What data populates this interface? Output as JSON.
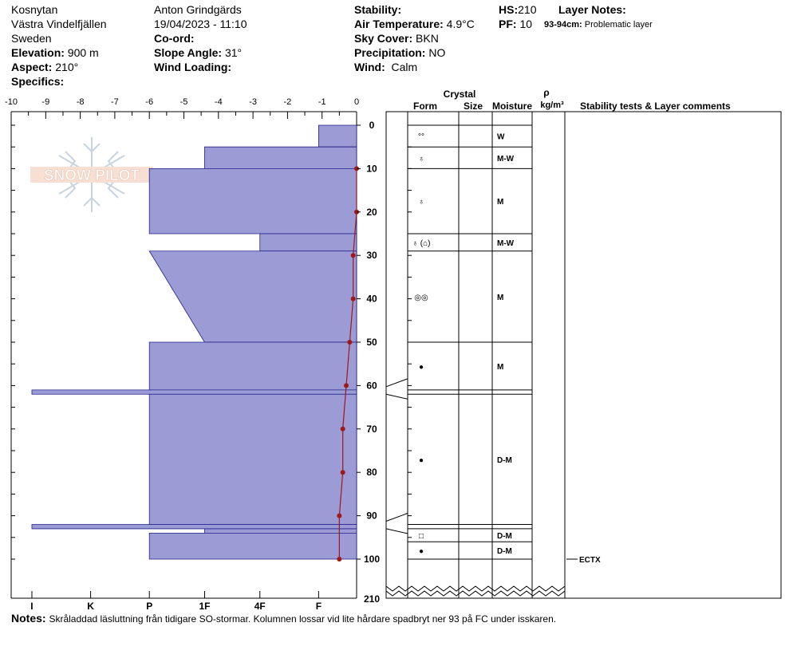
{
  "header": {
    "location": "Kosnytan",
    "region": "Västra Vindelfjällen",
    "country": "Sweden",
    "elevation_label": "Elevation:",
    "elevation_value": "900 m",
    "aspect_label": "Aspect:",
    "aspect_value": "210°",
    "specifics_label": "Specifics:",
    "observer": "Anton Grindgärds",
    "datetime": "19/04/2023 - 11:10",
    "coord_label": "Co-ord:",
    "slope_label": "Slope Angle:",
    "slope_value": "31°",
    "wind_loading_label": "Wind Loading:",
    "stability_label": "Stability:",
    "air_temp_label": "Air Temperature:",
    "air_temp_value": "4.9°C",
    "sky_label": "Sky Cover:",
    "sky_value": "BKN",
    "precip_label": "Precipitation:",
    "precip_value": "NO",
    "wind_label": "Wind:",
    "wind_value": "Calm",
    "hs_label": "HS:",
    "hs_value": "210",
    "pf_label": "PF:",
    "pf_value": "10",
    "layer_notes_label": "Layer Notes:",
    "layer_note_range": "93-94cm:",
    "layer_note_text": "Problematic layer"
  },
  "notes": {
    "label": "Notes:",
    "text": "Skråladdad läsluttning från tidigare SO-stormar. Kolumnen lossar vid lite hårdare spadbryt ner 93 på FC under isskaren."
  },
  "logo_text": "SNOW PILOT",
  "chart_data": {
    "type": "snow-profile",
    "colors": {
      "hardness_fill": "#9b9bd6",
      "hardness_stroke": "#20208a",
      "temperature": "#a01818"
    },
    "temperature_axis": {
      "range": [
        -10,
        0
      ],
      "ticks": [
        "-10",
        "-9",
        "-8",
        "-7",
        "-6",
        "-5",
        "-4",
        "-3",
        "-2",
        "-1",
        "0"
      ]
    },
    "hardness_axis": {
      "ticks": [
        "I",
        "K",
        "P",
        "1F",
        "4F",
        "F"
      ]
    },
    "depth_axis": {
      "range": [
        0,
        100
      ],
      "ticks": [
        "0",
        "10",
        "20",
        "30",
        "40",
        "50",
        "60",
        "70",
        "80",
        "90",
        "100"
      ],
      "break_label": "210"
    },
    "hardness_layers": [
      {
        "top": 0,
        "bottom": 5,
        "hardness": 1.1
      },
      {
        "top": 5,
        "bottom": 10,
        "hardness": 4.4
      },
      {
        "top": 10,
        "bottom": 25,
        "hardness": 6.0
      },
      {
        "top": 25,
        "bottom": 29,
        "hardness": 2.8
      },
      {
        "top": 29,
        "bottom": 50,
        "hardness_top": 6.0,
        "hardness_bottom": 4.4
      },
      {
        "top": 50,
        "bottom": 61,
        "hardness": 6.0
      },
      {
        "top": 61,
        "bottom": 62,
        "hardness": 9.4
      },
      {
        "top": 62,
        "bottom": 92,
        "hardness": 6.0
      },
      {
        "top": 92,
        "bottom": 93,
        "hardness": 9.4
      },
      {
        "top": 93,
        "bottom": 94,
        "hardness": 4.4
      },
      {
        "top": 94,
        "bottom": 100,
        "hardness": 6.0
      }
    ],
    "temperature_profile": [
      {
        "depth": 10,
        "temp": 0.0
      },
      {
        "depth": 20,
        "temp": 0.0
      },
      {
        "depth": 30,
        "temp": -0.1
      },
      {
        "depth": 40,
        "temp": -0.1
      },
      {
        "depth": 50,
        "temp": -0.2
      },
      {
        "depth": 60,
        "temp": -0.3
      },
      {
        "depth": 70,
        "temp": -0.4
      },
      {
        "depth": 80,
        "temp": -0.4
      },
      {
        "depth": 90,
        "temp": -0.5
      },
      {
        "depth": 100,
        "temp": -0.5
      }
    ],
    "table_headers": {
      "crystal": "Crystal",
      "form": "Form",
      "size": "Size",
      "moisture": "Moisture",
      "rho": "ρ",
      "density_unit": "kg/m³",
      "comments": "Stability tests & Layer comments"
    },
    "layers": [
      {
        "top": 0,
        "bottom": 5,
        "form": "°°",
        "moisture": "W"
      },
      {
        "top": 5,
        "bottom": 10,
        "form": "♁",
        "moisture": "M-W"
      },
      {
        "top": 10,
        "bottom": 25,
        "form": "♁",
        "moisture": "M"
      },
      {
        "top": 25,
        "bottom": 29,
        "form": "♁ (⌂)",
        "moisture": "M-W"
      },
      {
        "top": 29,
        "bottom": 50,
        "form": "◎◎",
        "moisture": "M"
      },
      {
        "top": 50,
        "bottom": 61,
        "form": "●",
        "moisture": "M"
      },
      {
        "top": 61,
        "bottom": 62,
        "form": "",
        "moisture": ""
      },
      {
        "top": 62,
        "bottom": 92,
        "form": "●",
        "moisture": "D-M"
      },
      {
        "top": 92,
        "bottom": 93,
        "form": "",
        "moisture": ""
      },
      {
        "top": 93,
        "bottom": 96,
        "form": "□",
        "moisture": "D-M"
      },
      {
        "top": 96,
        "bottom": 100,
        "form": "●",
        "moisture": "D-M"
      }
    ],
    "stability_tests": [
      {
        "depth": 100,
        "label": "ECTX"
      }
    ]
  }
}
